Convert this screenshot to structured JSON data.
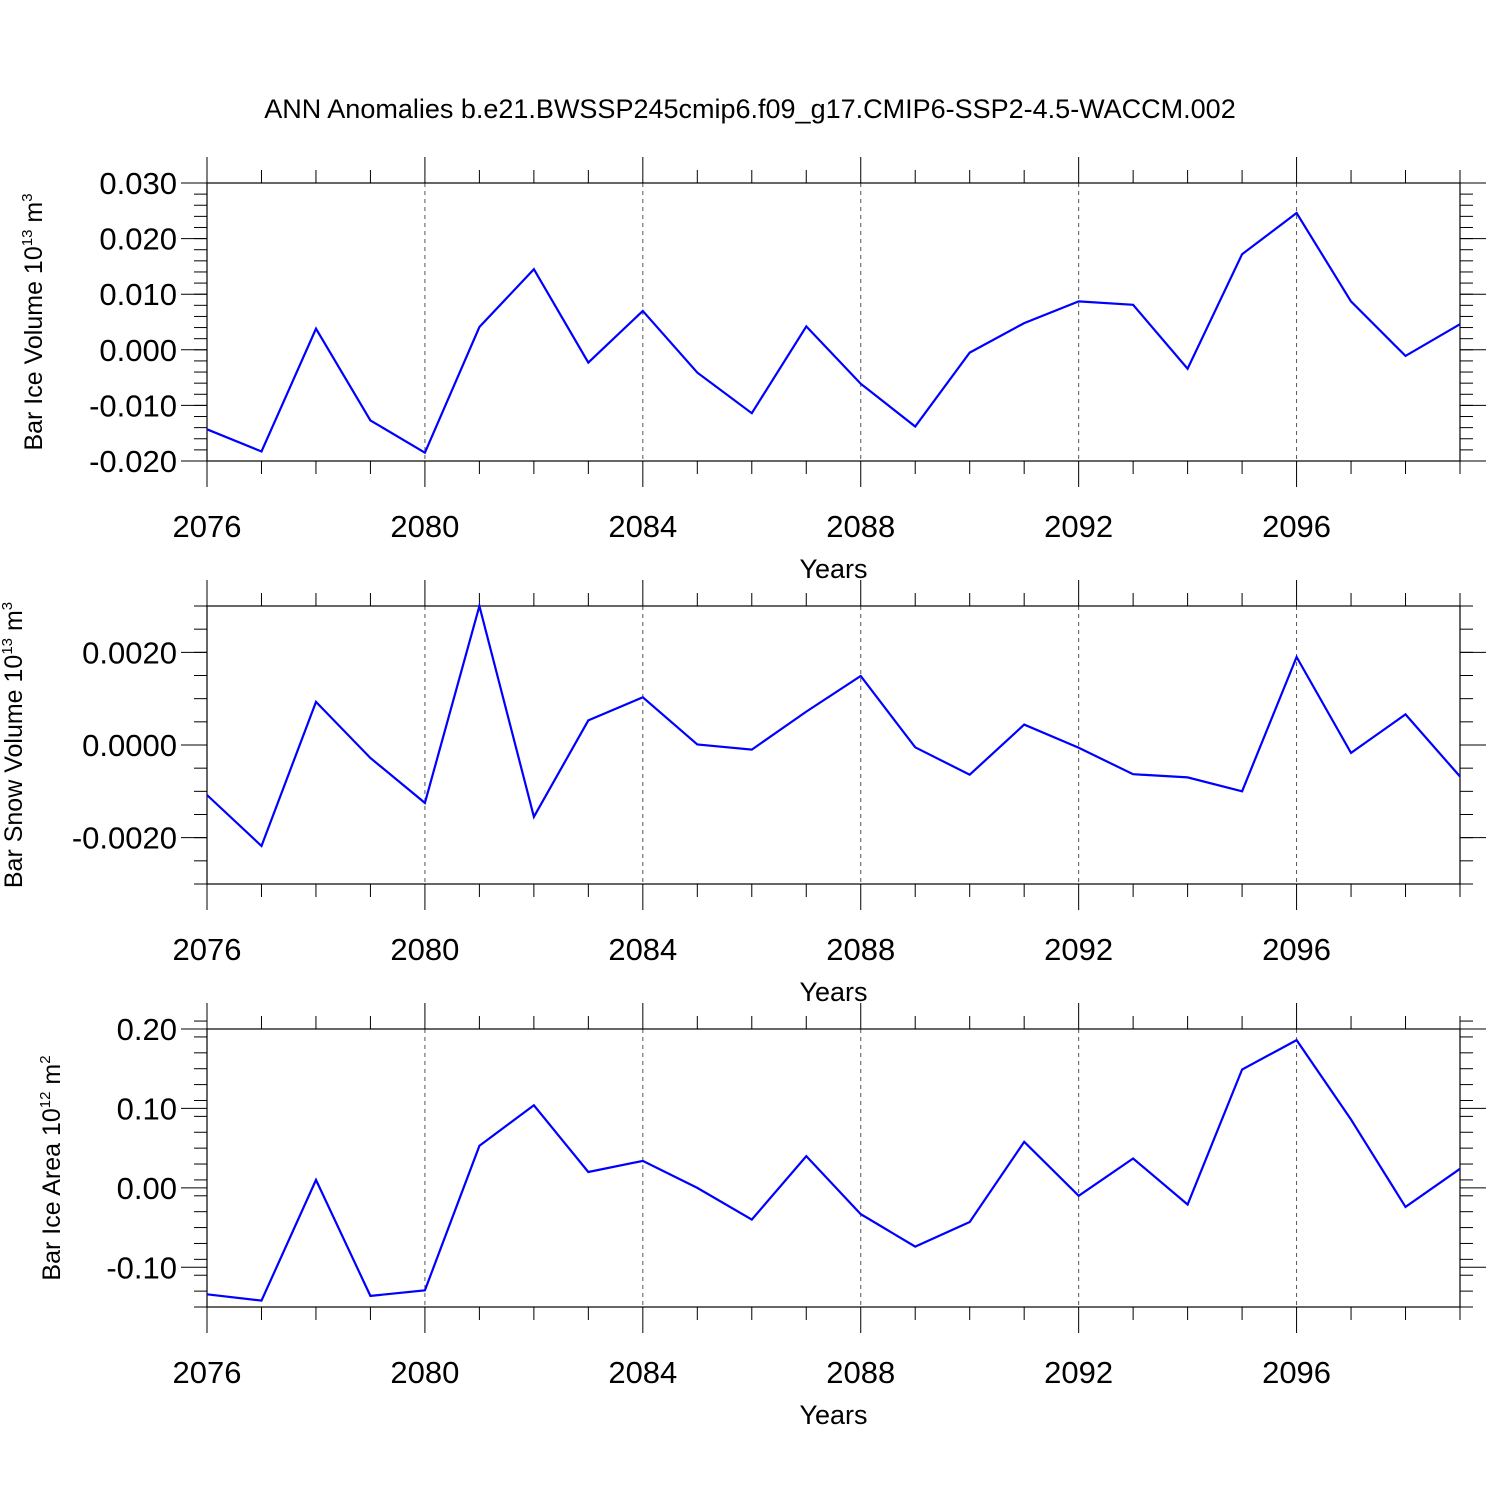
{
  "title": "ANN Anomalies b.e21.BWSSP245cmip6.f09_g17.CMIP6-SSP2-4.5-WACCM.002",
  "line_color": "#0000ff",
  "grid_color": "#555555",
  "chart_data": [
    {
      "type": "line",
      "ylabel": "Bar Ice Volume 10",
      "ylabel_exp": "13",
      "ylabel_unit": "m",
      "ylabel_unit_exp": "3",
      "xlabel": "Years",
      "xlim": [
        2076,
        2099
      ],
      "ylim": [
        -0.02,
        0.03
      ],
      "xticks": [
        "2076",
        "2080",
        "2084",
        "2088",
        "2092",
        "2096"
      ],
      "yticks": [
        "-0.020",
        "-0.010",
        "0.000",
        "0.010",
        "0.020",
        "0.030"
      ],
      "ytick_values": [
        -0.02,
        -0.01,
        0.0,
        0.01,
        0.02,
        0.03
      ],
      "yminor_step": 0.002,
      "grid": "dashed vertical at major x ticks",
      "x": [
        2076,
        2077,
        2078,
        2079,
        2080,
        2081,
        2082,
        2083,
        2084,
        2085,
        2086,
        2087,
        2088,
        2089,
        2090,
        2091,
        2092,
        2093,
        2094,
        2095,
        2096,
        2097,
        2098,
        2099
      ],
      "series": [
        {
          "values": [
            -0.0143,
            -0.0183,
            0.0038,
            -0.0127,
            -0.0185,
            0.0041,
            0.0145,
            -0.0023,
            0.007,
            -0.0041,
            -0.0114,
            0.0042,
            -0.0061,
            -0.0138,
            -0.0005,
            0.0048,
            0.0087,
            0.0081,
            -0.0034,
            0.0172,
            0.0246,
            0.0087,
            -0.0011,
            0.0046
          ]
        }
      ]
    },
    {
      "type": "line",
      "ylabel": "Bar Snow Volume 10",
      "ylabel_exp": "13",
      "ylabel_unit": "m",
      "ylabel_unit_exp": "3",
      "xlabel": "Years",
      "xlim": [
        2076,
        2099
      ],
      "ylim": [
        -0.003,
        0.003
      ],
      "xticks": [
        "2076",
        "2080",
        "2084",
        "2088",
        "2092",
        "2096"
      ],
      "yticks": [
        "-0.0020",
        "0.0000",
        "0.0020"
      ],
      "ytick_values": [
        -0.002,
        0.0,
        0.002
      ],
      "yminor_step": 0.0005,
      "grid": "dashed vertical at major x ticks",
      "x": [
        2076,
        2077,
        2078,
        2079,
        2080,
        2081,
        2082,
        2083,
        2084,
        2085,
        2086,
        2087,
        2088,
        2089,
        2090,
        2091,
        2092,
        2093,
        2094,
        2095,
        2096,
        2097,
        2098,
        2099
      ],
      "series": [
        {
          "values": [
            -0.00108,
            -0.00218,
            0.00093,
            -0.00028,
            -0.00125,
            0.003,
            -0.00155,
            0.00053,
            0.00103,
            1e-05,
            -0.0001,
            0.00072,
            0.00149,
            -5e-05,
            -0.00064,
            0.00044,
            -6e-05,
            -0.00063,
            -0.0007,
            -0.001,
            0.0019,
            -0.00017,
            0.00066,
            -0.00068
          ]
        }
      ]
    },
    {
      "type": "line",
      "ylabel": "Bar Ice Area 10",
      "ylabel_exp": "12",
      "ylabel_unit": "m",
      "ylabel_unit_exp": "2",
      "xlabel": "Years",
      "xlim": [
        2076,
        2099
      ],
      "ylim": [
        -0.15,
        0.2
      ],
      "xticks": [
        "2076",
        "2080",
        "2084",
        "2088",
        "2092",
        "2096"
      ],
      "yticks": [
        "-0.10",
        "0.00",
        "0.10",
        "0.20"
      ],
      "ytick_values": [
        -0.1,
        0.0,
        0.1,
        0.2
      ],
      "yminor_step": 0.02,
      "grid": "dashed vertical at major x ticks",
      "x": [
        2076,
        2077,
        2078,
        2079,
        2080,
        2081,
        2082,
        2083,
        2084,
        2085,
        2086,
        2087,
        2088,
        2089,
        2090,
        2091,
        2092,
        2093,
        2094,
        2095,
        2096,
        2097,
        2098,
        2099
      ],
      "series": [
        {
          "values": [
            -0.134,
            -0.142,
            0.01,
            -0.136,
            -0.129,
            0.053,
            0.104,
            0.02,
            0.034,
            0.0,
            -0.04,
            0.04,
            -0.033,
            -0.074,
            -0.043,
            0.058,
            -0.01,
            0.037,
            -0.021,
            0.149,
            0.186,
            0.086,
            -0.024,
            0.024
          ]
        }
      ]
    }
  ]
}
